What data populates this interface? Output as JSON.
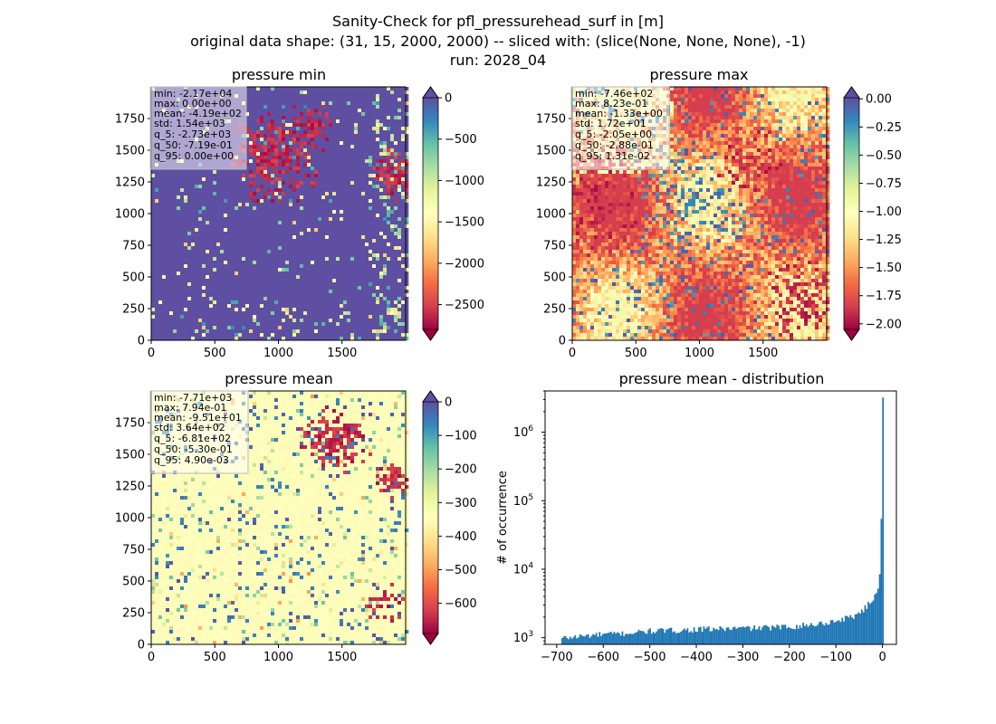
{
  "suptitle": {
    "line1": "Sanity-Check for pfl_pressurehead_surf in [m]",
    "line2": "original data shape: (31, 15, 2000, 2000) -- sliced with: (slice(None, None, None), -1)",
    "line3": "run: 2028_04"
  },
  "panels": {
    "min": {
      "title": "pressure min",
      "stats": [
        "min: -2.17e+04",
        "max: 0.00e+00",
        "mean: -4.19e+02",
        "std: 1.54e+03",
        "q_5: -2.73e+03",
        "q_50: -7.19e-01",
        "q_95: 0.00e+00"
      ],
      "xticks": [
        "0",
        "500",
        "1000",
        "1500"
      ],
      "yticks": [
        "0",
        "250",
        "500",
        "750",
        "1000",
        "1250",
        "1500",
        "1750"
      ],
      "cbar_ticks": [
        "0",
        "−500",
        "−1000",
        "−1500",
        "−2000",
        "−2500"
      ],
      "cbar_range": [
        -2800,
        0
      ],
      "colormap": "Spectral",
      "extend": "both"
    },
    "max": {
      "title": "pressure max",
      "stats": [
        "min: -7.46e+02",
        "max: 8.23e-01",
        "mean: -1.33e+00",
        "std: 1.72e+01",
        "q_5: -2.05e+00",
        "q_50: -2.88e-01",
        "q_95: 1.31e-02"
      ],
      "xticks": [
        "0",
        "500",
        "1000",
        "1500"
      ],
      "yticks": [
        "0",
        "250",
        "500",
        "750",
        "1000",
        "1250",
        "1500",
        "1750"
      ],
      "cbar_ticks": [
        "0.00",
        "−0.25",
        "−0.50",
        "−0.75",
        "−1.00",
        "−1.25",
        "−1.50",
        "−1.75",
        "−2.00"
      ],
      "cbar_range": [
        -2.05,
        0.01
      ],
      "colormap": "Spectral",
      "extend": "both"
    },
    "mean": {
      "title": "pressure mean",
      "stats": [
        "min: -7.71e+03",
        "max: 7.94e-01",
        "mean: -9.51e+01",
        "std: 3.64e+02",
        "q_5: -6.81e+02",
        "q_50: -5.30e-01",
        "q_95: 4.90e-03"
      ],
      "xticks": [
        "0",
        "500",
        "1000",
        "1500"
      ],
      "yticks": [
        "0",
        "250",
        "500",
        "750",
        "1000",
        "1250",
        "1500",
        "1750"
      ],
      "cbar_ticks": [
        "0",
        "−100",
        "−200",
        "−300",
        "−400",
        "−500",
        "−600"
      ],
      "cbar_range": [
        -690,
        0
      ],
      "colormap": "Spectral",
      "extend": "both"
    }
  },
  "chart_data": [
    {
      "type": "heatmap",
      "title": "pressure min",
      "xlim": [
        0,
        2000
      ],
      "ylim": [
        0,
        2000
      ],
      "xticks": [
        0,
        500,
        1000,
        1500
      ],
      "yticks": [
        0,
        250,
        500,
        750,
        1000,
        1250,
        1500,
        1750
      ],
      "colorbar": {
        "vmin": -2800,
        "vmax": 0,
        "ticks": [
          0,
          -500,
          -1000,
          -1500,
          -2000,
          -2500
        ]
      },
      "dominant_value": 0
    },
    {
      "type": "heatmap",
      "title": "pressure max",
      "xlim": [
        0,
        2000
      ],
      "ylim": [
        0,
        2000
      ],
      "xticks": [
        0,
        500,
        1000,
        1500
      ],
      "yticks": [
        0,
        250,
        500,
        750,
        1000,
        1250,
        1500,
        1750
      ],
      "colorbar": {
        "vmin": -2.05,
        "vmax": 0.01,
        "ticks": [
          0.0,
          -0.25,
          -0.5,
          -0.75,
          -1.0,
          -1.25,
          -1.5,
          -1.75,
          -2.0
        ]
      }
    },
    {
      "type": "heatmap",
      "title": "pressure mean",
      "xlim": [
        0,
        2000
      ],
      "ylim": [
        0,
        2000
      ],
      "xticks": [
        0,
        500,
        1000,
        1500
      ],
      "yticks": [
        0,
        250,
        500,
        750,
        1000,
        1250,
        1500,
        1750
      ],
      "colorbar": {
        "vmin": -690,
        "vmax": 0,
        "ticks": [
          0,
          -100,
          -200,
          -300,
          -400,
          -500,
          -600
        ]
      },
      "dominant_value": -0.5
    },
    {
      "type": "bar",
      "title": "pressure mean - distribution",
      "ylabel": "# of occurrence",
      "yscale": "log",
      "xlim": [
        -725,
        30
      ],
      "ylim": [
        800,
        4000000
      ],
      "xticks": [
        -700,
        -600,
        -500,
        -400,
        -300,
        -200,
        -100,
        0
      ],
      "yticks_labels": [
        "10^3",
        "10^4",
        "10^5",
        "10^6"
      ],
      "bin_width": 3.5,
      "color": "#1f77b4",
      "bins_left_edge": -690,
      "counts_profile": [
        [
          -690,
          980
        ],
        [
          -650,
          1050
        ],
        [
          -600,
          1120
        ],
        [
          -550,
          1160
        ],
        [
          -500,
          1250
        ],
        [
          -450,
          1280
        ],
        [
          -400,
          1320
        ],
        [
          -350,
          1350
        ],
        [
          -300,
          1380
        ],
        [
          -250,
          1400
        ],
        [
          -200,
          1450
        ],
        [
          -150,
          1550
        ],
        [
          -100,
          1750
        ],
        [
          -60,
          2100
        ],
        [
          -40,
          2600
        ],
        [
          -25,
          3300
        ],
        [
          -15,
          4200
        ],
        [
          -8,
          6000
        ],
        [
          -4,
          12000
        ],
        [
          -2,
          70000
        ],
        [
          0,
          3200000
        ]
      ]
    }
  ]
}
